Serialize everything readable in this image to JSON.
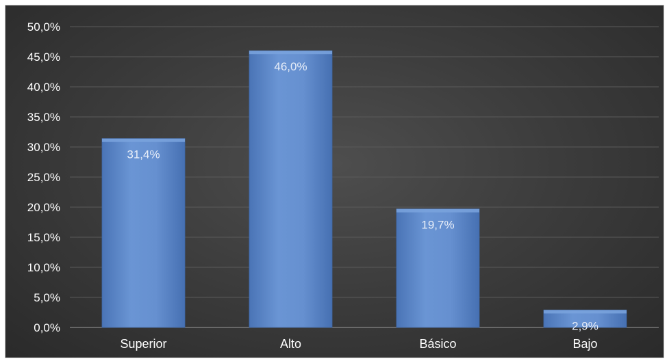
{
  "chart_data": {
    "type": "bar",
    "categories": [
      "Superior",
      "Alto",
      "Básico",
      "Bajo"
    ],
    "values": [
      31.4,
      46.0,
      19.7,
      2.9
    ],
    "data_labels": [
      "31,4%",
      "46,0%",
      "19,7%",
      "2,9%"
    ],
    "title": "",
    "xlabel": "",
    "ylabel": "",
    "ylim": [
      0,
      50
    ],
    "ytick_values": [
      0,
      5,
      10,
      15,
      20,
      25,
      30,
      35,
      40,
      45,
      50
    ],
    "ytick_labels": [
      "0,0%",
      "5,0%",
      "10,0%",
      "15,0%",
      "20,0%",
      "25,0%",
      "30,0%",
      "35,0%",
      "40,0%",
      "45,0%",
      "50,0%"
    ],
    "grid": true,
    "legend": "none",
    "colors": {
      "bar": "#5b86c8",
      "bar_highlight": "#7aa3dd",
      "bar_edge": "#3f68a8",
      "background": "#3d3d3d",
      "text": "#ffffff"
    }
  }
}
